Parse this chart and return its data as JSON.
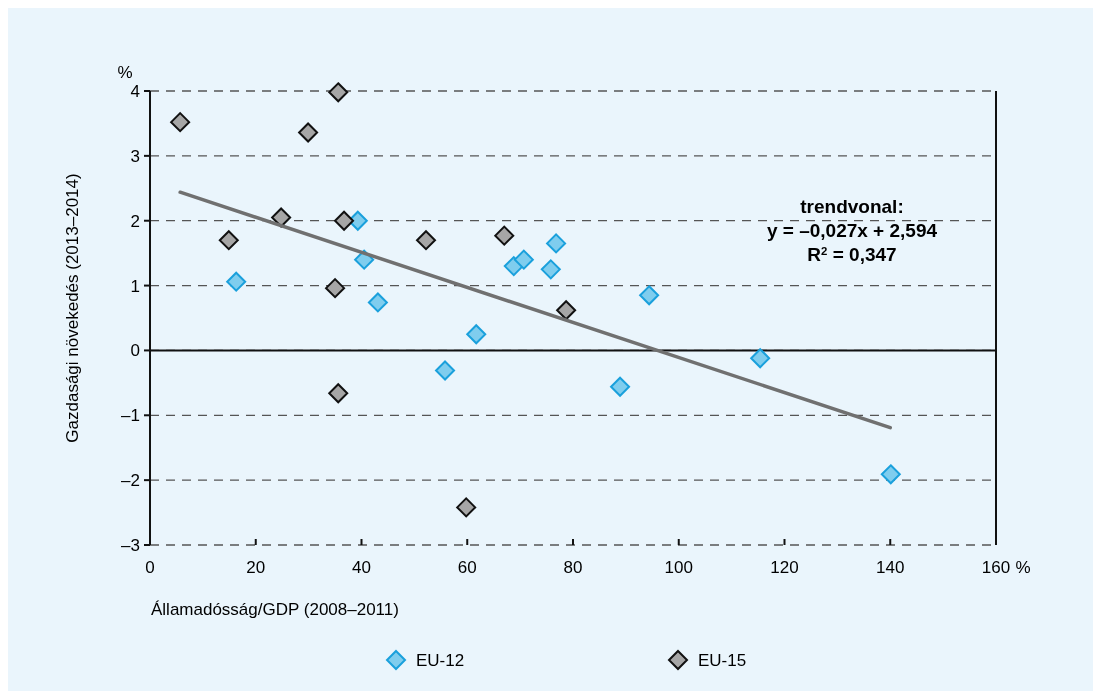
{
  "chart_data": {
    "type": "scatter",
    "xlabel": "Államadósság/GDP (2008–2011)",
    "ylabel": "Gazdasági növekedés (2013–2014)",
    "xlim": [
      0,
      160
    ],
    "xticks": [
      0,
      20,
      40,
      60,
      80,
      100,
      120,
      140,
      160
    ],
    "ylim": [
      -3,
      4
    ],
    "yticks": [
      {
        "value": -3,
        "label": "–3"
      },
      {
        "value": -2,
        "label": "–2"
      },
      {
        "value": -1,
        "label": "–1"
      },
      0,
      1,
      2,
      3,
      4
    ],
    "grid": "y",
    "legend": "bottom",
    "annotations": [
      "%",
      "%",
      "trendvonal:",
      "y = –0,027x + 2,594",
      "R$^{2}$ = 0,347"
    ],
    "series": [
      {
        "name": "EU-12",
        "color": "#7fcdee",
        "marker": "diamond",
        "x": [
          16.3,
          39.3,
          40.5,
          43.1,
          55.8,
          61.7,
          68.8,
          70.7,
          75.8,
          76.8,
          88.9,
          94.4,
          115.4,
          140.1
        ],
        "values": [
          1.06,
          2.0,
          1.4,
          0.74,
          -0.31,
          0.25,
          1.3,
          1.4,
          1.25,
          1.65,
          -0.56,
          0.85,
          -0.12,
          -1.91
        ]
      },
      {
        "name": "EU-15",
        "color": "#a6a6a6",
        "marker": "diamond",
        "x": [
          5.7,
          14.9,
          24.8,
          29.9,
          35.6,
          35.0,
          36.7,
          35.6,
          52.2,
          67.0,
          78.7,
          59.8
        ],
        "values": [
          3.52,
          1.7,
          2.05,
          3.36,
          3.98,
          0.96,
          2.0,
          -0.66,
          1.7,
          1.77,
          0.62,
          -2.42
        ]
      },
      {
        "type": "line",
        "color": "#707070",
        "marker": "none",
        "x": [
          5.7,
          140
        ],
        "values": [
          2.44,
          -1.19
        ]
      }
    ]
  }
}
